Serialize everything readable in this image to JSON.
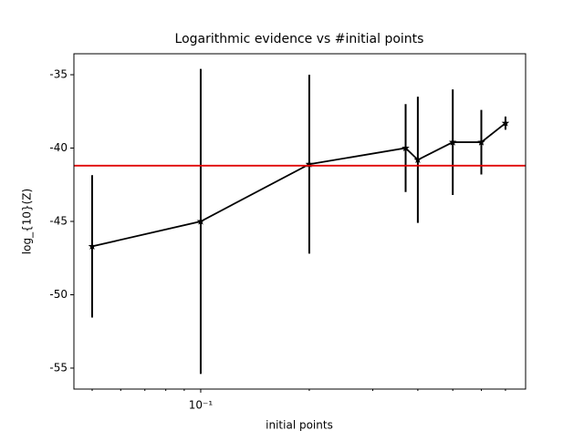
{
  "chart_data": {
    "type": "errorbar-line",
    "title": "Logarithmic evidence vs #initial points",
    "xlabel": "initial points",
    "ylabel": "log_{10}(Z)",
    "x": [
      0.05,
      0.1,
      0.2,
      0.37,
      0.4,
      0.5,
      0.6,
      0.7
    ],
    "series": [
      {
        "color": "#000000",
        "values": [
          -46.7,
          -45.0,
          -41.1,
          -40.0,
          -40.8,
          -39.6,
          -39.6,
          -38.3
        ],
        "errors": [
          4.85,
          10.4,
          6.1,
          3.0,
          4.3,
          3.6,
          2.2,
          0.45
        ]
      }
    ],
    "hline": {
      "value": -41.2,
      "color": "#e00000"
    },
    "xscale": "log",
    "xlim": [
      0.0445,
      0.796
    ],
    "ylim": [
      -56.43,
      -33.57
    ],
    "xticks": [
      {
        "value": 0.1,
        "label": "10⁻¹"
      }
    ],
    "xminorticks": [
      0.05,
      0.06,
      0.07,
      0.08,
      0.09,
      0.2,
      0.3,
      0.4,
      0.5,
      0.6,
      0.7
    ],
    "yticks": [
      -55,
      -50,
      -45,
      -40,
      -35
    ]
  }
}
